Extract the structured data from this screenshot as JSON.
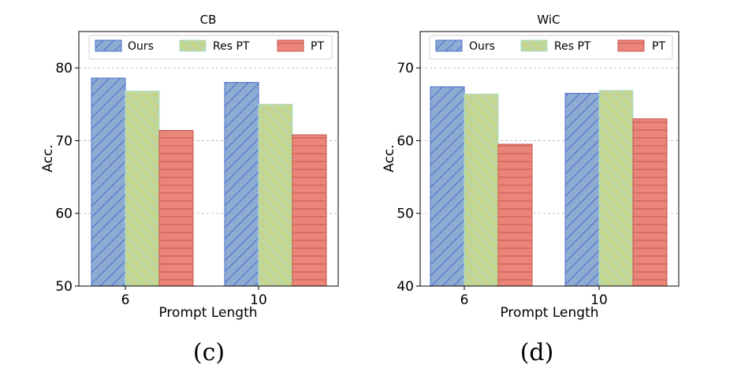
{
  "chart_data": [
    {
      "type": "bar",
      "title": "CB",
      "xlabel": "Prompt Length",
      "ylabel": "Acc.",
      "categories": [
        "6",
        "10"
      ],
      "ylim": [
        50,
        85
      ],
      "yticks": [
        50,
        60,
        70,
        80
      ],
      "grid": "horizontal dashed",
      "legend": "top",
      "series": [
        {
          "name": "Ours",
          "values": [
            78.6,
            78.0
          ]
        },
        {
          "name": "Res PT",
          "values": [
            76.8,
            75.0
          ]
        },
        {
          "name": "PT",
          "values": [
            71.4,
            70.8
          ]
        }
      ],
      "caption": "(c)"
    },
    {
      "type": "bar",
      "title": "WiC",
      "xlabel": "Prompt Length",
      "ylabel": "Acc.",
      "categories": [
        "6",
        "10"
      ],
      "ylim": [
        40,
        75
      ],
      "yticks": [
        40,
        50,
        60,
        70
      ],
      "grid": "horizontal dashed",
      "legend": "top",
      "series": [
        {
          "name": "Ours",
          "values": [
            67.4,
            66.5
          ]
        },
        {
          "name": "Res PT",
          "values": [
            66.4,
            66.9
          ]
        },
        {
          "name": "PT",
          "values": [
            59.5,
            63.0
          ]
        }
      ],
      "caption": "(d)"
    }
  ],
  "colors": {
    "ours_fill": "#8eacd1",
    "ours_hatch": "#4a6fd0",
    "respt_fill": "#c5d48f",
    "respt_hatch": "#a9dfd0",
    "pt_fill": "#ea857a",
    "pt_hatch": "#c6564d",
    "grid": "#b0b0b0"
  }
}
